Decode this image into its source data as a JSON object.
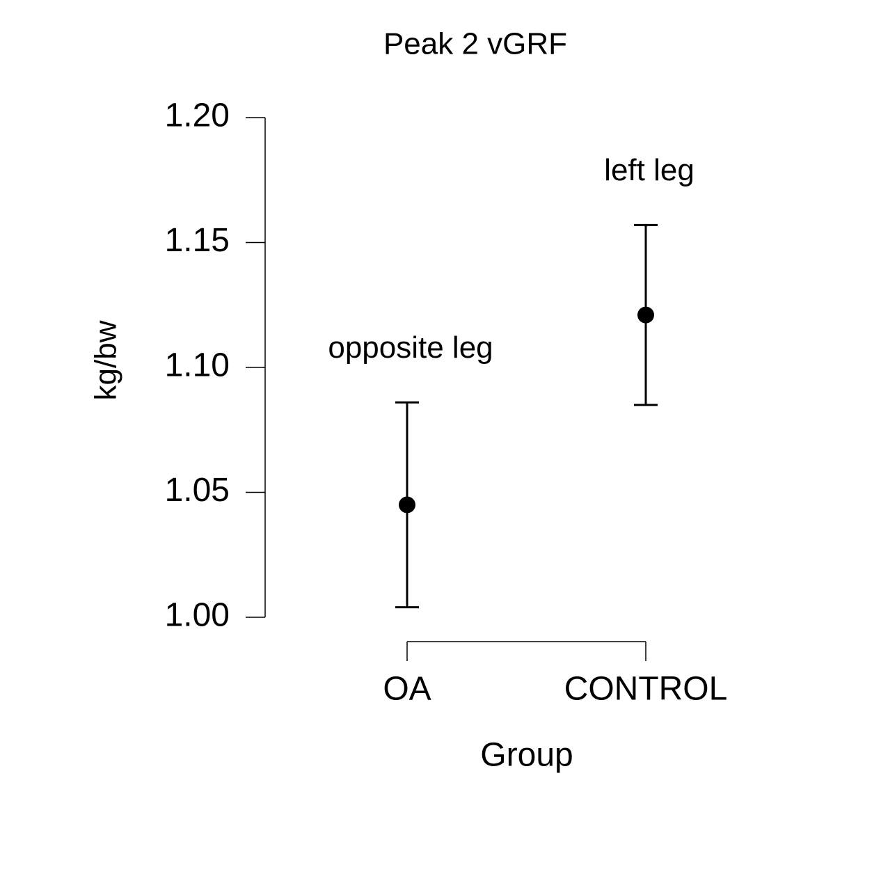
{
  "chart_data": {
    "type": "errorbar",
    "title": "Peak 2 vGRF",
    "x_label": "Group",
    "y_label": "kg/bw",
    "categories": [
      "OA",
      "CONTROL"
    ],
    "values": [
      1.045,
      1.121
    ],
    "errors": [
      0.041,
      0.036
    ],
    "annotations": [
      {
        "text": "opposite leg"
      },
      {
        "text": "left leg"
      }
    ],
    "color": "#000000",
    "ylim": [
      1.0,
      1.2
    ],
    "yticks": [
      {
        "value": 1.0,
        "label": "1.00"
      },
      1.05,
      {
        "value": 1.1,
        "label": "1.10"
      },
      1.15,
      {
        "value": 1.2,
        "label": "1.20"
      }
    ]
  }
}
